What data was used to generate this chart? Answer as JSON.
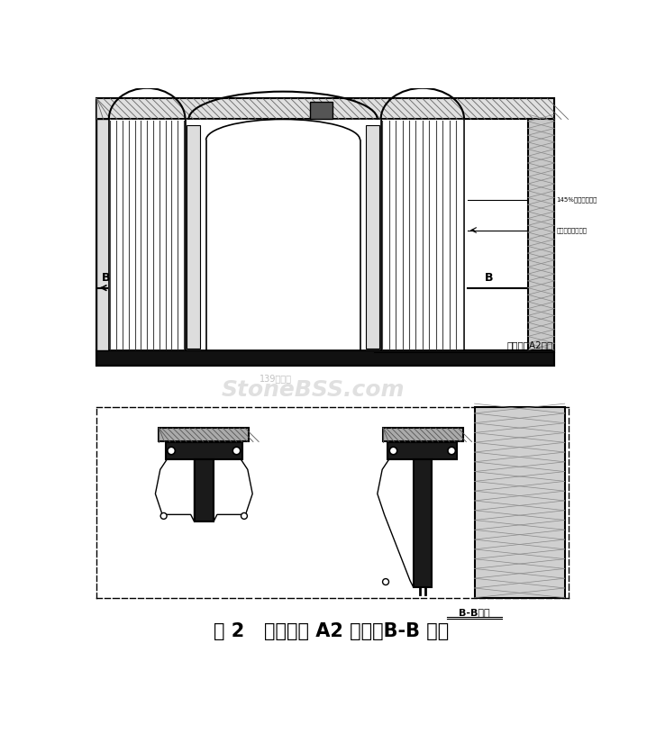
{
  "bg_color": "#ffffff",
  "title": "图 2   一层门厅 A2 立面、B-B 剖面",
  "label_elev": "一层门厅A2立面",
  "label_section": "B-B剖面",
  "annotation1": "145%钢塑支撑连接",
  "annotation2": "干挂钢龙骨石挂侧",
  "label_B1": "B",
  "label_B2": "B",
  "watermark": "139石材网",
  "watermark2": "StoneBSS.com"
}
